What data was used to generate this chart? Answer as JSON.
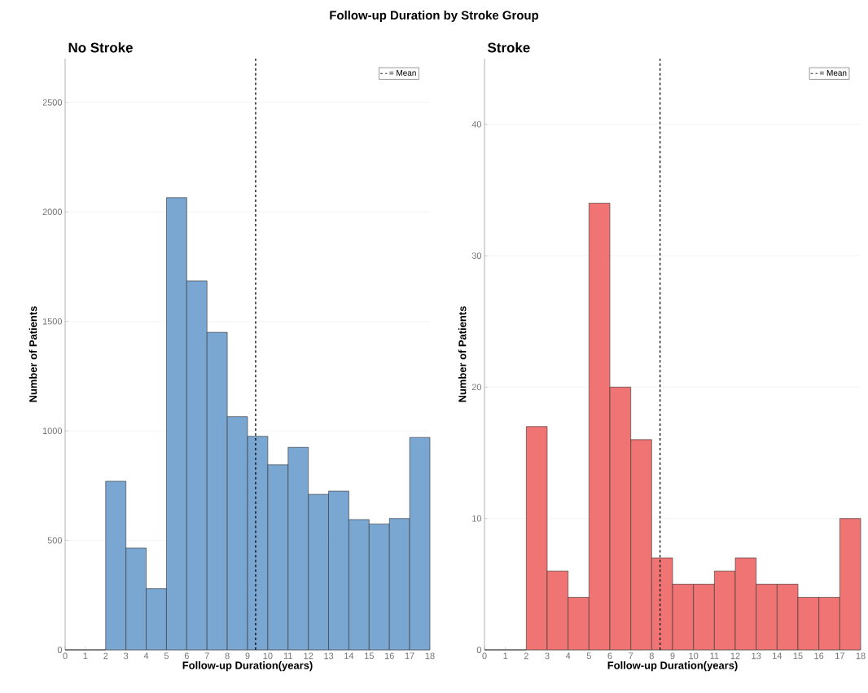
{
  "chart_data": [
    {
      "type": "histogram",
      "title": "No Stroke",
      "subtitle": "Follow-up Duration by Stroke Group",
      "xlabel": "Follow-up Duration(years)",
      "ylabel": "Number of Patients",
      "bins": [
        0,
        1,
        2,
        3,
        4,
        5,
        6,
        7,
        8,
        9,
        10,
        11,
        12,
        13,
        14,
        15,
        16,
        17,
        18
      ],
      "values": [
        0,
        0,
        770,
        465,
        280,
        2065,
        1685,
        1450,
        1065,
        975,
        845,
        925,
        710,
        725,
        595,
        575,
        600,
        970
      ],
      "color": "#7aa6d2",
      "xlim": [
        0,
        18
      ],
      "xticks": [
        0,
        1,
        2,
        3,
        4,
        5,
        6,
        7,
        8,
        9,
        10,
        11,
        12,
        13,
        14,
        15,
        16,
        17,
        18
      ],
      "ylim": [
        0,
        2700
      ],
      "yticks": [
        0,
        500,
        1000,
        1500,
        2000,
        2500
      ],
      "ref_lines": [
        {
          "axis": "x",
          "value": 9.4,
          "label": "= Mean",
          "color": "#000000",
          "line_style": "dashed"
        }
      ],
      "grid": "y",
      "legend": "top right"
    },
    {
      "type": "histogram",
      "title": "Stroke",
      "xlabel": "Follow-up Duration(years)",
      "ylabel": "Number of Patients",
      "bins": [
        0,
        1,
        2,
        3,
        4,
        5,
        6,
        7,
        8,
        9,
        10,
        11,
        12,
        13,
        14,
        15,
        16,
        17,
        18
      ],
      "values": [
        0,
        0,
        17,
        6,
        4,
        34,
        20,
        16,
        7,
        5,
        5,
        6,
        7,
        5,
        5,
        4,
        4,
        10
      ],
      "color": "#f07474",
      "xlim": [
        0,
        18
      ],
      "xticks": [
        0,
        1,
        2,
        3,
        4,
        5,
        6,
        7,
        8,
        9,
        10,
        11,
        12,
        13,
        14,
        15,
        16,
        17,
        18
      ],
      "ylim": [
        0,
        45
      ],
      "yticks": [
        0,
        10,
        20,
        30,
        40
      ],
      "ref_lines": [
        {
          "axis": "x",
          "value": 8.4,
          "label": "= Mean",
          "color": "#000000",
          "line_style": "dashed"
        }
      ],
      "grid": "y",
      "legend": "top right"
    }
  ]
}
